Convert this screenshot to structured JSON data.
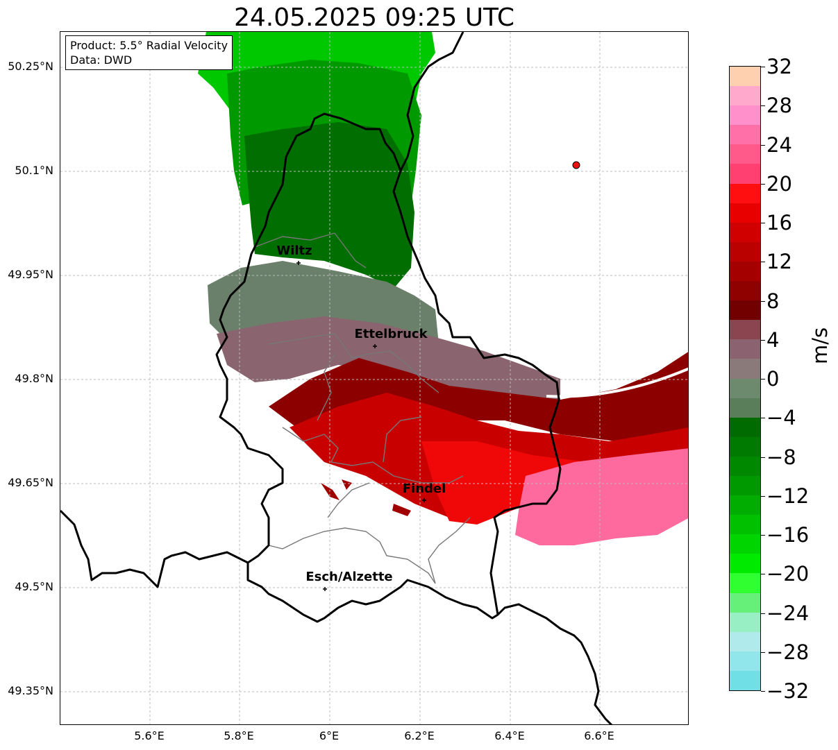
{
  "title": "24.05.2025 09:25 UTC",
  "info": {
    "product": "Product: 5.5° Radial Velocity",
    "data": "Data: DWD"
  },
  "lat_ticks": [
    "50.25°N",
    "50.1°N",
    "49.95°N",
    "49.8°N",
    "49.65°N",
    "49.5°N",
    "49.35°N"
  ],
  "lon_ticks": [
    "5.6°E",
    "5.8°E",
    "6°E",
    "6.2°E",
    "6.4°E",
    "6.6°E"
  ],
  "cities": [
    "Wiltz",
    "Ettelbruck",
    "Findel",
    "Esch/Alzette"
  ],
  "colorbar": {
    "unit": "m/s",
    "ticks": [
      "32",
      "28",
      "24",
      "20",
      "16",
      "12",
      "8",
      "4",
      "0",
      "−4",
      "−8",
      "−12",
      "−16",
      "−20",
      "−24",
      "−28",
      "−32"
    ],
    "colors_top_to_bottom": [
      "#ffd0b0",
      "#ffaacc",
      "#ff90cc",
      "#ff70a8",
      "#ff5a8a",
      "#ff4070",
      "#ff0f0f",
      "#e80000",
      "#d00000",
      "#bb0000",
      "#a50000",
      "#8f0000",
      "#720000",
      "#8a4550",
      "#8a6270",
      "#8a7a7a",
      "#6e8a6e",
      "#5a7d5a",
      "#006b00",
      "#007a00",
      "#008800",
      "#009a00",
      "#00ad00",
      "#00c000",
      "#00d500",
      "#00ea00",
      "#30ff30",
      "#66f07a",
      "#99efc4",
      "#b0eaea",
      "#90e6ea",
      "#70e0e6"
    ]
  },
  "colors": {
    "border_country": "#000000",
    "border_district": "#777777",
    "grid": "#bbbbbb",
    "station_marker": "#ee1111"
  }
}
